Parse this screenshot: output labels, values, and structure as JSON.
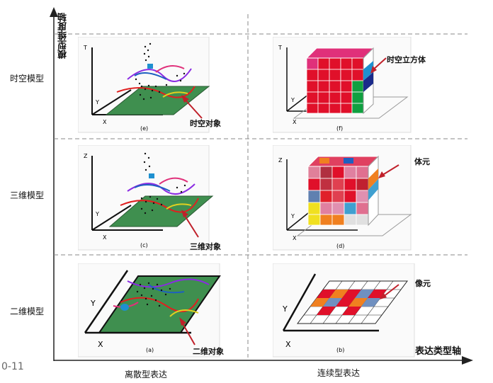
{
  "axes": {
    "y_axis_label": "模型维度轴",
    "x_axis_label": "表达类型轴"
  },
  "rows": [
    "时空模型",
    "三维模型",
    "二维模型"
  ],
  "columns": [
    "离散型表达",
    "连续型表达"
  ],
  "figure_number": "0-11",
  "panels": {
    "e": {
      "caption": "(e)",
      "annotation": "时空对象",
      "axes": [
        "T",
        "Y",
        "X"
      ]
    },
    "f": {
      "caption": "(f)",
      "annotation": "时空立方体",
      "axes": [
        "T",
        "Y",
        "X"
      ]
    },
    "c": {
      "caption": "(c)",
      "annotation": "三维对象",
      "axes": [
        "Z",
        "Y",
        "X"
      ]
    },
    "d": {
      "caption": "(d)",
      "annotation": "体元",
      "axes": [
        "Z",
        "Y",
        "X"
      ]
    },
    "a": {
      "caption": "(a)",
      "annotation": "二维对象",
      "axes": [
        "Y",
        "X"
      ]
    },
    "b": {
      "caption": "(b)",
      "annotation": "像元",
      "axes": [
        "Y",
        "X"
      ]
    }
  },
  "colors": {
    "green_surface": "#3f8f4f",
    "arrow": "#c0202a",
    "red_cube": "#e0102a",
    "magenta": "#e0307a"
  }
}
